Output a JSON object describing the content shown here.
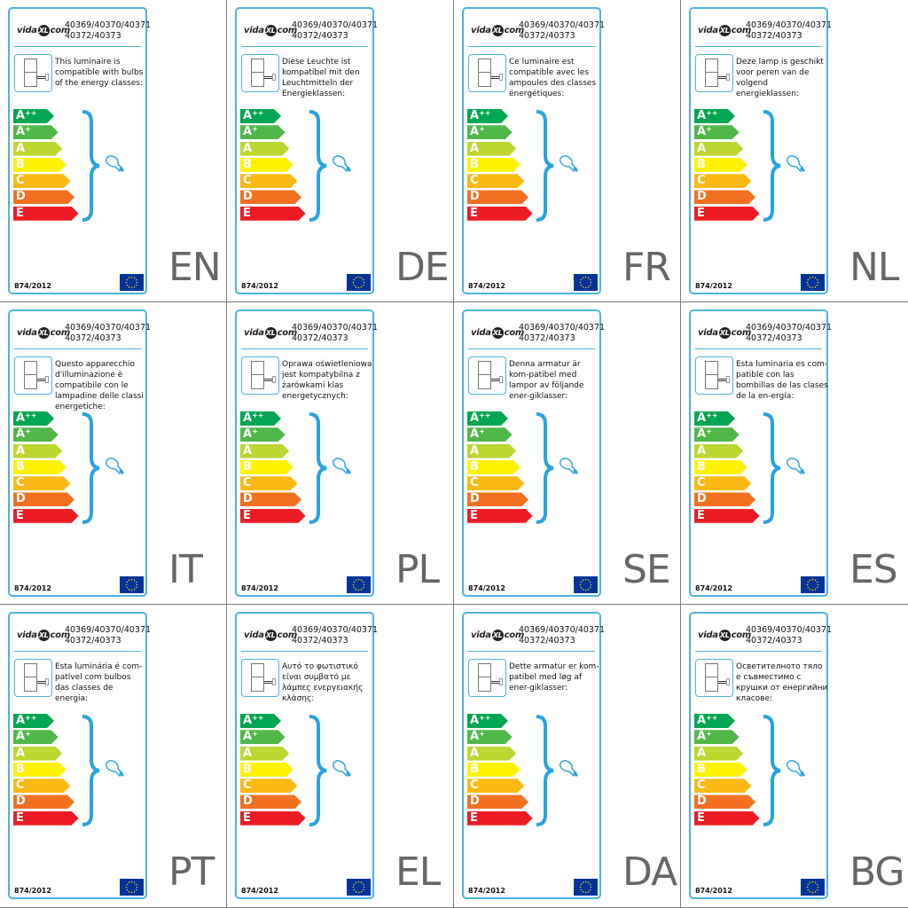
{
  "brand": "vidaXL.com",
  "product_numbers": [
    "40369/40370/40371",
    "40372/40373"
  ],
  "regulation": "874/2012",
  "energy_classes": [
    {
      "label": "A",
      "sup": "++",
      "color": "#00a651"
    },
    {
      "label": "A",
      "sup": "+",
      "color": "#50b848"
    },
    {
      "label": "A",
      "sup": "",
      "color": "#bed630"
    },
    {
      "label": "B",
      "sup": "",
      "color": "#fff200"
    },
    {
      "label": "C",
      "sup": "",
      "color": "#fdb913"
    },
    {
      "label": "D",
      "sup": "",
      "color": "#f37021"
    },
    {
      "label": "E",
      "sup": "",
      "color": "#ed1c24"
    }
  ],
  "accent_color": "#4fb3dc",
  "labels": [
    {
      "lang": "EN",
      "text": "This luminaire is compatible with bulbs of the energy classes:"
    },
    {
      "lang": "DE",
      "text": "Diese Leuchte ist kompatibel mit den Leuchtmitteln der Energieklassen:"
    },
    {
      "lang": "FR",
      "text": "Ce luminaire est compatible avec les ampoules des classes énergétiques:"
    },
    {
      "lang": "NL",
      "text": "Deze lamp is geschikt voor peren van de volgend energieklassen:"
    },
    {
      "lang": "IT",
      "text": "Questo apparecchio d'illuminazione è compatibile con le lampadine delle classi energetiche:"
    },
    {
      "lang": "PL",
      "text": "Oprawa oświetleniowa jest kompatybilna z żarówkami klas energetycznych:"
    },
    {
      "lang": "SE",
      "text": "Denna armatur är kom-patibel med lampor av följande ener-giklasser:"
    },
    {
      "lang": "ES",
      "text": "Esta luminaria es com-patible con las bombillas de las clases de la en-ergía:"
    },
    {
      "lang": "PT",
      "text": "Esta luminária é com-patível com bulbos das classes de energia:"
    },
    {
      "lang": "EL",
      "text": "Αυτό το φωτιστικό είναι συμβατό με λάμπες ενεργειακής κλάσης:"
    },
    {
      "lang": "DA",
      "text": "Dette armatur er kom-patibel med løg af ener-giklasser:"
    },
    {
      "lang": "BG",
      "text": "Осветителното тяло е съвместимо с крушки от енергийни класове:"
    }
  ]
}
